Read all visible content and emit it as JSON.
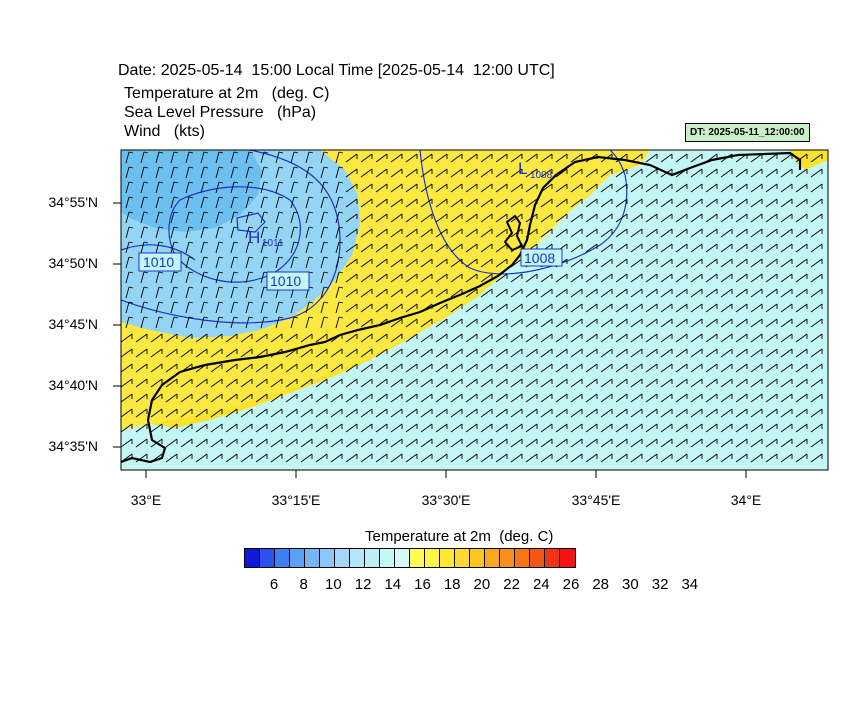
{
  "header": {
    "date_line": "Date: 2025-05-14  15:00 Local Time [2025-05-14  12:00 UTC]",
    "field1": "Temperature at 2m   (deg. C)",
    "field2": "Sea Level Pressure   (hPa)",
    "field3": "Wind   (kts)",
    "dt_badge": "DT: 2025-05-11_12:00:00"
  },
  "map": {
    "lat_labels": [
      "34°55'N",
      "34°50'N",
      "34°45'N",
      "34°40'N",
      "34°35'N"
    ],
    "lon_labels": [
      "33°E",
      "33°15'E",
      "33°30'E",
      "33°45'E",
      "34°E"
    ],
    "pressure_labels": {
      "high_marker": "H",
      "high_value": "1011",
      "low_marker": "L",
      "low_value": "1008",
      "isobar_a": "1010",
      "isobar_b": "1010",
      "isobar_c": "1008"
    },
    "colors": {
      "sea": "#c3f7f6",
      "warm_land": "#fbe22c",
      "light_yellow": "#fdf36a",
      "cool_blue": "#94d5f5",
      "colder_blue": "#6cc0f0",
      "isobar": "#1b34c8",
      "coast": "#000000"
    }
  },
  "colorbar": {
    "title": "Temperature at 2m  (deg. C)",
    "colors": [
      "#0d1bd8",
      "#2c52ee",
      "#3f7ff4",
      "#5c9ff5",
      "#74b5f6",
      "#8ec6f7",
      "#a4d6f8",
      "#b3e6f7",
      "#bbeff7",
      "#c4f7f6",
      "#d3faf6",
      "#fffb50",
      "#fff545",
      "#fde934",
      "#fcd92c",
      "#fbc524",
      "#f9aa1c",
      "#f88f18",
      "#f67316",
      "#f45616",
      "#f23414",
      "#f01414"
    ],
    "labels": [
      "6",
      "8",
      "10",
      "12",
      "14",
      "16",
      "18",
      "20",
      "22",
      "24",
      "26",
      "28",
      "30",
      "32",
      "34"
    ]
  }
}
